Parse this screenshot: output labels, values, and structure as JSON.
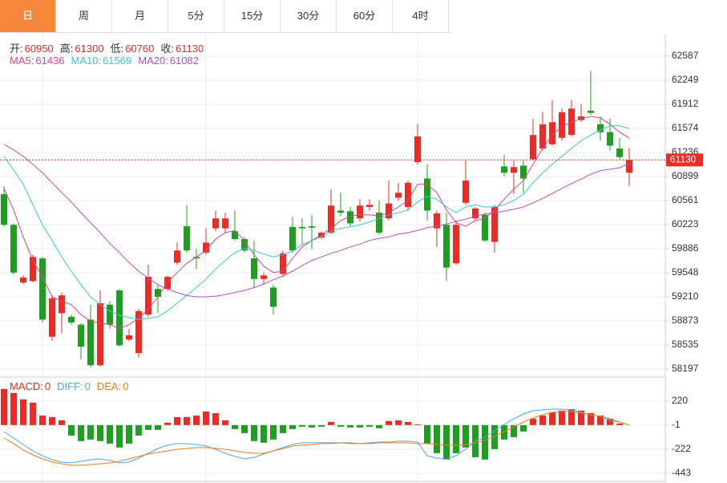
{
  "chart_data": {
    "type": "candlestick",
    "tabs": [
      "日",
      "周",
      "月",
      "5分",
      "15分",
      "30分",
      "60分",
      "4时"
    ],
    "active_tab": 0,
    "ohlc_labels": [
      "开:",
      "高:",
      "低:",
      "收:"
    ],
    "up_color": "#ee2a24",
    "down_color": "#1f9f1f",
    "ylim": [
      58084,
      62901
    ],
    "yticks": [
      58197,
      58535,
      58873,
      59210,
      59548,
      59886,
      60223,
      60561,
      60899,
      61236,
      61574,
      61912,
      62249,
      62587
    ],
    "grid": true,
    "candles": [
      [
        60650,
        60760,
        60200,
        60220
      ],
      [
        60220,
        60240,
        59520,
        59550
      ],
      [
        59410,
        59510,
        59390,
        59480
      ],
      [
        59430,
        59800,
        59410,
        59770
      ],
      [
        59750,
        59770,
        58850,
        58890
      ],
      [
        58650,
        59230,
        58590,
        59190
      ],
      [
        58980,
        59270,
        58700,
        59230
      ],
      [
        58930,
        58960,
        58820,
        58850
      ],
      [
        58820,
        58840,
        58330,
        58510
      ],
      [
        58890,
        59100,
        58220,
        58250
      ],
      [
        58250,
        59300,
        58230,
        59120
      ],
      [
        59100,
        59150,
        58760,
        58820
      ],
      [
        59300,
        59320,
        58510,
        58530
      ],
      [
        58610,
        58760,
        58590,
        58670
      ],
      [
        58420,
        59040,
        58360,
        59010
      ],
      [
        58960,
        59660,
        58930,
        59490
      ],
      [
        59320,
        59380,
        58980,
        59210
      ],
      [
        59320,
        59510,
        59300,
        59490
      ],
      [
        59690,
        59970,
        59660,
        59860
      ],
      [
        60200,
        60500,
        59830,
        59860
      ],
      [
        59770,
        59880,
        59600,
        59750
      ],
      [
        59830,
        60170,
        59800,
        59970
      ],
      [
        60170,
        60420,
        60130,
        60310
      ],
      [
        60170,
        60390,
        60110,
        60310
      ],
      [
        60130,
        60420,
        60000,
        60020
      ],
      [
        60020,
        60050,
        59830,
        59860
      ],
      [
        59750,
        60000,
        59340,
        59460
      ],
      [
        59460,
        59550,
        59380,
        59510
      ],
      [
        59340,
        59380,
        58960,
        59070
      ],
      [
        59530,
        59860,
        59490,
        59820
      ],
      [
        60190,
        60330,
        59830,
        59860
      ],
      [
        60190,
        60310,
        59940,
        60170
      ],
      [
        60200,
        60360,
        59880,
        60180
      ],
      [
        60040,
        60130,
        60020,
        60110
      ],
      [
        60110,
        60720,
        60090,
        60490
      ],
      [
        60420,
        60670,
        60340,
        60390
      ],
      [
        60410,
        60470,
        60200,
        60240
      ],
      [
        60310,
        60580,
        60270,
        60490
      ],
      [
        60470,
        60580,
        60420,
        60500
      ],
      [
        60390,
        60560,
        60080,
        60110
      ],
      [
        60310,
        60840,
        60280,
        60520
      ],
      [
        60600,
        60810,
        60560,
        60670
      ],
      [
        60470,
        60840,
        60420,
        60810
      ],
      [
        61100,
        61630,
        61070,
        61460
      ],
      [
        60870,
        61070,
        60280,
        60420
      ],
      [
        60170,
        60420,
        59910,
        60380
      ],
      [
        60220,
        60390,
        59430,
        59620
      ],
      [
        59680,
        60280,
        59660,
        60220
      ],
      [
        60530,
        61120,
        60500,
        60840
      ],
      [
        60310,
        60470,
        60280,
        60450
      ],
      [
        60360,
        60390,
        59980,
        60000
      ],
      [
        59980,
        60500,
        59830,
        60470
      ],
      [
        61040,
        61200,
        60900,
        60950
      ],
      [
        60950,
        61120,
        60650,
        61030
      ],
      [
        61050,
        61120,
        60670,
        60870
      ],
      [
        61140,
        61710,
        61120,
        61480
      ],
      [
        61290,
        61800,
        61260,
        61630
      ],
      [
        61350,
        61970,
        61330,
        61660
      ],
      [
        61440,
        61850,
        61400,
        61800
      ],
      [
        61480,
        61970,
        61460,
        61850
      ],
      [
        61690,
        61910,
        61660,
        61740
      ],
      [
        61820,
        62380,
        61760,
        61790
      ],
      [
        61630,
        61740,
        61400,
        61520
      ],
      [
        61520,
        61710,
        61260,
        61330
      ],
      [
        61290,
        61440,
        61140,
        61170
      ],
      [
        60950,
        61300,
        60760,
        61130
      ]
    ],
    "ma": [
      {
        "name": "MA5:",
        "color": "#e8407a",
        "values": [
          60730,
          60430,
          60050,
          59720,
          59490,
          59210,
          59150,
          59100,
          58960,
          58870,
          58840,
          58820,
          58760,
          58820,
          58910,
          59040,
          59210,
          59410,
          59550,
          59680,
          59770,
          59860,
          60020,
          60110,
          60140,
          60000,
          59800,
          59640,
          59550,
          59570,
          59750,
          59910,
          60000,
          60080,
          60170,
          60280,
          60340,
          60360,
          60360,
          60340,
          60390,
          60470,
          60560,
          60790,
          60790,
          60670,
          60430,
          60250,
          60200,
          60280,
          60310,
          60430,
          60580,
          60720,
          60840,
          61070,
          61290,
          61480,
          61600,
          61660,
          61710,
          61740,
          61720,
          61630,
          61520,
          61436
        ]
      },
      {
        "name": "MA10:",
        "color": "#3cc3d8",
        "values": [
          61180,
          60990,
          60790,
          60500,
          60220,
          60000,
          59770,
          59570,
          59380,
          59210,
          59100,
          59010,
          58950,
          58920,
          58890,
          58910,
          58930,
          59010,
          59120,
          59230,
          59340,
          59460,
          59600,
          59720,
          59830,
          59890,
          59860,
          59810,
          59770,
          59800,
          59850,
          59940,
          60000,
          60050,
          60130,
          60170,
          60190,
          60220,
          60260,
          60310,
          60360,
          60390,
          60430,
          60540,
          60620,
          60580,
          60470,
          60390,
          60470,
          60500,
          60470,
          60470,
          60500,
          60560,
          60650,
          60810,
          60950,
          61070,
          61180,
          61290,
          61400,
          61480,
          61550,
          61610,
          61610,
          61569
        ]
      },
      {
        "name": "MA20:",
        "color": "#b94fbf",
        "values": [
          61350,
          61270,
          61180,
          61070,
          60950,
          60810,
          60670,
          60540,
          60390,
          60250,
          60110,
          59960,
          59830,
          59690,
          59570,
          59470,
          59380,
          59320,
          59270,
          59230,
          59210,
          59210,
          59220,
          59240,
          59270,
          59300,
          59340,
          59390,
          59450,
          59500,
          59570,
          59650,
          59720,
          59770,
          59820,
          59860,
          59910,
          59950,
          60000,
          60030,
          60050,
          60090,
          60110,
          60140,
          60180,
          60200,
          60230,
          60270,
          60300,
          60340,
          60370,
          60390,
          60410,
          60440,
          60470,
          60530,
          60590,
          60660,
          60730,
          60800,
          60860,
          60930,
          60980,
          61000,
          61020,
          61082
        ]
      }
    ],
    "macd": {
      "ylim": [
        -517,
        426
      ],
      "yticks": [
        -443,
        -222,
        -1,
        220
      ],
      "series": [
        {
          "name": "MACD:",
          "kind": "bar",
          "color": "#ee2a24",
          "values": [
            332,
            295,
            236,
            206,
            88,
            74,
            44,
            -96,
            -147,
            -133,
            -147,
            -170,
            -206,
            -170,
            -96,
            -44,
            -44,
            22,
            74,
            74,
            88,
            125,
            110,
            44,
            -37,
            -74,
            -147,
            -162,
            -133,
            -74,
            -37,
            -15,
            -22,
            -15,
            29,
            -15,
            -22,
            -22,
            -15,
            -29,
            37,
            44,
            29,
            7,
            -170,
            -258,
            -317,
            -258,
            -206,
            -295,
            -317,
            -221,
            -133,
            -111,
            -59,
            59,
            88,
            118,
            133,
            147,
            133,
            110,
            88,
            59,
            15,
            0
          ]
        },
        {
          "name": "DIFF:",
          "kind": "line",
          "color": "#4ba8e6",
          "values": [
            -60,
            -119,
            -178,
            -237,
            -281,
            -318,
            -340,
            -347,
            -333,
            -318,
            -310,
            -325,
            -347,
            -340,
            -303,
            -259,
            -215,
            -185,
            -170,
            -170,
            -178,
            -193,
            -222,
            -259,
            -288,
            -310,
            -296,
            -266,
            -237,
            -207,
            -178,
            -163,
            -163,
            -163,
            -163,
            -163,
            -170,
            -170,
            -163,
            -156,
            -156,
            -148,
            -148,
            -156,
            -281,
            -303,
            -310,
            -281,
            -222,
            -148,
            -112,
            -53,
            6,
            58,
            102,
            132,
            139,
            146,
            146,
            139,
            117,
            95,
            80,
            43,
            28,
            0
          ]
        },
        {
          "name": "DEA:",
          "kind": "line",
          "color": "#f07d1c",
          "values": [
            -119,
            -170,
            -229,
            -274,
            -310,
            -340,
            -355,
            -369,
            -369,
            -362,
            -355,
            -347,
            -333,
            -310,
            -288,
            -266,
            -251,
            -237,
            -222,
            -215,
            -207,
            -207,
            -215,
            -222,
            -237,
            -251,
            -259,
            -259,
            -237,
            -215,
            -193,
            -185,
            -178,
            -170,
            -170,
            -163,
            -163,
            -170,
            -170,
            -163,
            -163,
            -163,
            -163,
            -170,
            -170,
            -178,
            -185,
            -185,
            -178,
            -163,
            -141,
            -104,
            -60,
            -16,
            28,
            65,
            95,
            117,
            124,
            124,
            110,
            95,
            80,
            58,
            28,
            0
          ]
        }
      ]
    }
  }
}
